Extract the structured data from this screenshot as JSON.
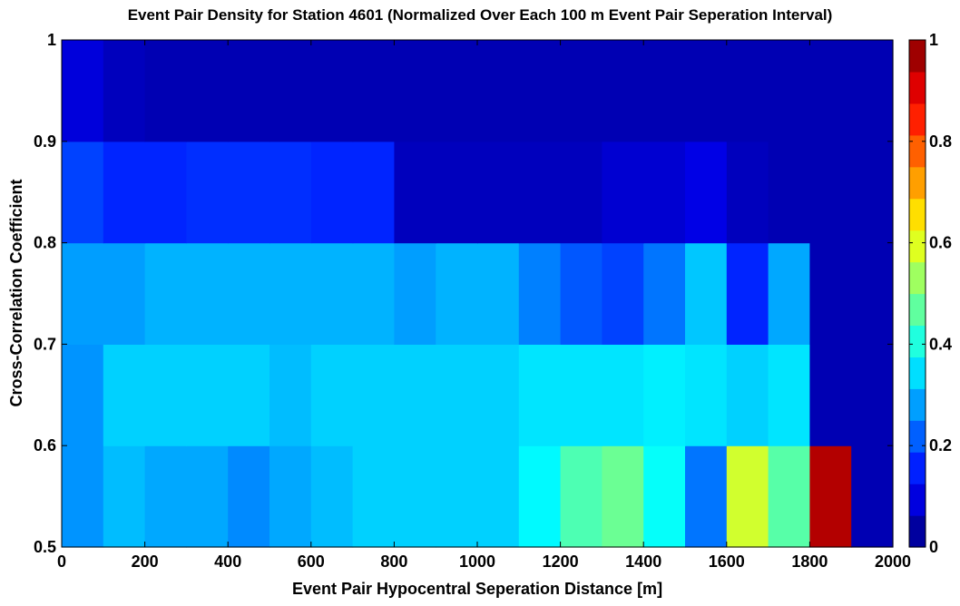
{
  "chart_data": {
    "type": "heatmap",
    "title": "Event Pair Density for Station 4601 (Normalized Over Each 100 m Event Pair Seperation Interval)",
    "xlabel": "Event Pair Hypocentral Seperation Distance [m]",
    "ylabel": "Cross-Correlation Coefficient",
    "xlim": [
      0,
      2000
    ],
    "ylim": [
      0.5,
      1
    ],
    "x_ticks": [
      "0",
      "200",
      "400",
      "600",
      "800",
      "1000",
      "1200",
      "1400",
      "1600",
      "1800",
      "2000"
    ],
    "y_ticks": [
      "0.5",
      "0.6",
      "0.7",
      "0.8",
      "0.9",
      "1"
    ],
    "x_bin_edges": [
      0,
      100,
      200,
      300,
      400,
      500,
      600,
      700,
      800,
      900,
      1000,
      1100,
      1200,
      1300,
      1400,
      1500,
      1600,
      1700,
      1800,
      1900,
      2000
    ],
    "y_bin_edges": [
      0.5,
      0.6,
      0.7,
      0.8,
      0.9,
      1.0
    ],
    "colormap": "jet",
    "colorbar": {
      "limits": [
        0,
        1
      ],
      "ticks": [
        "0",
        "0.2",
        "0.4",
        "0.6",
        "0.8",
        "1"
      ],
      "levels": 16
    },
    "grid": false,
    "values": [
      [
        0.27,
        0.31,
        0.29,
        0.29,
        0.26,
        0.29,
        0.31,
        0.33,
        0.33,
        0.33,
        0.33,
        0.37,
        0.45,
        0.48,
        0.38,
        0.24,
        0.58,
        0.46,
        0.95,
        0.05
      ],
      [
        0.27,
        0.33,
        0.33,
        0.33,
        0.33,
        0.31,
        0.33,
        0.33,
        0.33,
        0.33,
        0.33,
        0.35,
        0.35,
        0.35,
        0.36,
        0.35,
        0.33,
        0.35,
        0.05,
        0.05
      ],
      [
        0.28,
        0.28,
        0.3,
        0.3,
        0.3,
        0.3,
        0.3,
        0.3,
        0.28,
        0.3,
        0.3,
        0.25,
        0.21,
        0.19,
        0.24,
        0.32,
        0.16,
        0.29,
        0.05,
        0.05
      ],
      [
        0.19,
        0.16,
        0.16,
        0.17,
        0.17,
        0.17,
        0.16,
        0.16,
        0.06,
        0.06,
        0.06,
        0.06,
        0.06,
        0.08,
        0.08,
        0.1,
        0.06,
        0.05,
        0.05,
        0.05
      ],
      [
        0.09,
        0.06,
        0.05,
        0.05,
        0.05,
        0.05,
        0.05,
        0.05,
        0.05,
        0.05,
        0.05,
        0.05,
        0.05,
        0.05,
        0.05,
        0.05,
        0.05,
        0.05,
        0.05,
        0.05
      ]
    ]
  }
}
